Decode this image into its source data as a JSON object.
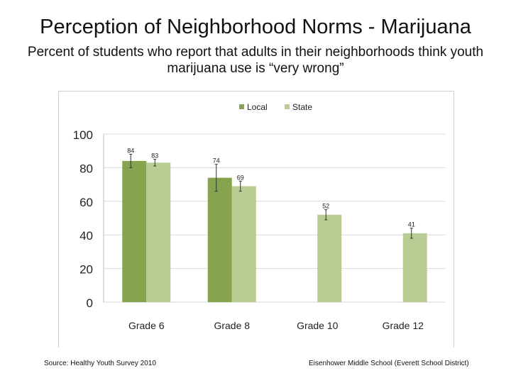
{
  "page": {
    "title": "Perception of Neighborhood Norms - Marijuana",
    "subtitle": "Percent of students who report that adults in their neighborhoods think youth marijuana use is “very wrong”",
    "source": "Source: Healthy Youth Survey 2010",
    "district": "Eisenhower Middle School (Everett School District)"
  },
  "colors": {
    "local": "#86a34d",
    "state": "#b8cc93",
    "gridline": "#d9d9d9",
    "axis_text": "#222222",
    "error_bar": "#333333"
  },
  "chart_data": {
    "type": "bar",
    "title": "Perception of Neighborhood Norms - Marijuana",
    "xlabel": "",
    "ylabel": "",
    "ylim": [
      0,
      100
    ],
    "yticks": [
      0,
      20,
      40,
      60,
      80,
      100
    ],
    "categories": [
      "Grade 6",
      "Grade 8",
      "Grade 10",
      "Grade 12"
    ],
    "legend": {
      "position": "top"
    },
    "series": [
      {
        "name": "Local",
        "values": [
          84,
          74,
          null,
          null
        ],
        "error_low": [
          80,
          66,
          null,
          null
        ],
        "error_high": [
          88,
          82,
          null,
          null
        ]
      },
      {
        "name": "State",
        "values": [
          83,
          69,
          52,
          41
        ],
        "error_low": [
          81,
          66,
          49,
          38
        ],
        "error_high": [
          85,
          72,
          55,
          44
        ]
      }
    ],
    "data_labels": [
      [
        "84",
        "74",
        "",
        ""
      ],
      [
        "83",
        "69",
        "52",
        "41"
      ]
    ]
  }
}
